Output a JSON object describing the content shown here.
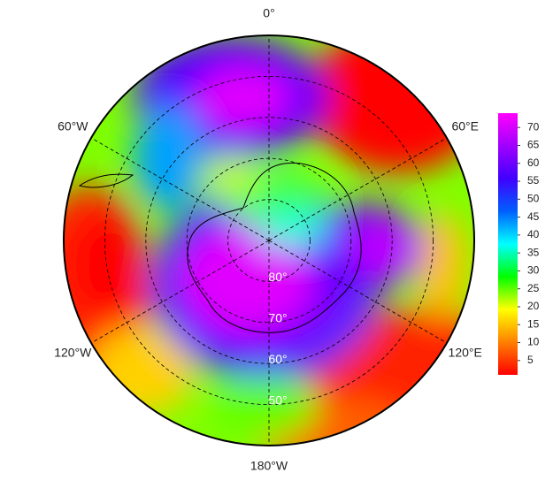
{
  "map": {
    "type": "polar",
    "meridians": [
      {
        "value": 0,
        "label": "0°"
      },
      {
        "value": 60,
        "label": "60°E"
      },
      {
        "value": 120,
        "label": "120°E"
      },
      {
        "value": 180,
        "label": "180°W"
      },
      {
        "value": -120,
        "label": "120°W"
      },
      {
        "value": -60,
        "label": "60°W"
      }
    ],
    "parallels": [
      {
        "value": 80,
        "label": "80°"
      },
      {
        "value": 70,
        "label": "70°"
      },
      {
        "value": 60,
        "label": "60°"
      },
      {
        "value": 50,
        "label": "50°"
      }
    ],
    "boundary_lat": 40,
    "colorbar": {
      "clim": [
        1,
        74
      ],
      "ticks": [
        5,
        10,
        15,
        20,
        25,
        30,
        35,
        40,
        45,
        50,
        55,
        60,
        65,
        70
      ],
      "colors": [
        "#ff0000",
        "#ff8000",
        "#ffff00",
        "#00ff00",
        "#00ffff",
        "#0060ff",
        "#4000ff",
        "#a000ff",
        "#ff00ff"
      ]
    }
  }
}
